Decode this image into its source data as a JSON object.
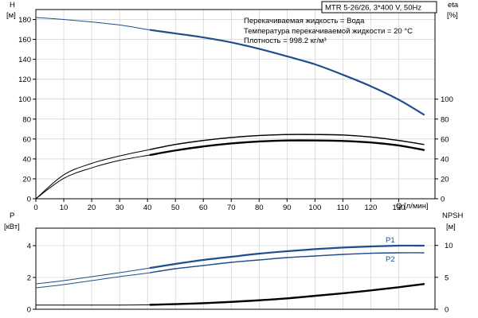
{
  "header": {
    "model": "MTR 5-26/26, 3*400 V, 50Hz"
  },
  "info_lines": [
    "Перекачиваемая жидкость = Вода",
    "Температура перекачиваемой жидкости = 20 °C",
    "Плотность = 998.2 кг/м³"
  ],
  "colors": {
    "head_curve": "#1f4e8c",
    "efficiency_curve": "#000000",
    "p1_curve": "#1f4e8c",
    "p2_curve": "#1f4e8c",
    "npsh_curve": "#000000",
    "axis": "#000000",
    "grid": "#c8c8c8"
  },
  "chart_data": [
    {
      "type": "line",
      "xlabel": "Q [л/мин]",
      "xticks": [
        "0",
        "10",
        "20",
        "30",
        "40",
        "50",
        "60",
        "70",
        "80",
        "90",
        "100",
        "110",
        "120",
        "130"
      ],
      "xlim": [
        0,
        143
      ],
      "ylabel_left": "H",
      "ylabel_left_unit": "[м]",
      "ylim_left": [
        0,
        190
      ],
      "yticks_left": [
        "0",
        "20",
        "40",
        "60",
        "80",
        "100",
        "120",
        "140",
        "160",
        "180"
      ],
      "ylabel_right": "eta",
      "ylabel_right_unit": "[%]",
      "ylim_right": [
        0,
        190
      ],
      "yticks_right": [
        "0",
        "20",
        "40",
        "60",
        "80",
        "100"
      ],
      "grid": true,
      "series": [
        {
          "axis": "left",
          "x": [
            0,
            10,
            20,
            30,
            41,
            50,
            60,
            70,
            80,
            90,
            100,
            110,
            120,
            130,
            139
          ],
          "y": [
            182,
            180,
            177.5,
            174.5,
            169.5,
            166,
            162,
            157,
            150.5,
            143,
            135,
            124.5,
            113,
            99.5,
            84.5
          ]
        },
        {
          "axis": "right",
          "x": [
            0,
            10,
            20,
            30,
            41,
            50,
            60,
            70,
            80,
            90,
            100,
            110,
            120,
            130,
            139
          ],
          "y": [
            0,
            24,
            35.5,
            43,
            49.5,
            54.5,
            58.5,
            61.5,
            63.5,
            64.5,
            64.5,
            64,
            62,
            58.5,
            54.5
          ]
        },
        {
          "axis": "right",
          "x": [
            0,
            10,
            20,
            30,
            41,
            50,
            60,
            70,
            80,
            90,
            100,
            110,
            120,
            130,
            139
          ],
          "y": [
            0,
            20.5,
            31,
            38.5,
            44,
            48.5,
            52.5,
            55.5,
            57.5,
            58.5,
            58.5,
            58,
            56.5,
            53.5,
            49
          ]
        }
      ]
    },
    {
      "type": "line",
      "xlim": [
        0,
        143
      ],
      "ylabel_left": "P",
      "ylabel_left_unit": "[кВт]",
      "ylim_left": [
        0,
        5.1
      ],
      "yticks_left": [
        "0",
        "2",
        "4"
      ],
      "ylabel_right": "NPSH",
      "ylabel_right_unit": "[м]",
      "ylim_right": [
        0,
        12.7
      ],
      "yticks_right": [
        "0",
        "5",
        "10"
      ],
      "grid": true,
      "series": [
        {
          "name": "P1",
          "axis": "left",
          "x": [
            0,
            10,
            20,
            30,
            41,
            50,
            60,
            70,
            80,
            90,
            100,
            110,
            120,
            130,
            139
          ],
          "y": [
            1.6,
            1.8,
            2.05,
            2.3,
            2.6,
            2.85,
            3.1,
            3.3,
            3.5,
            3.65,
            3.78,
            3.88,
            3.95,
            4.0,
            4.0
          ]
        },
        {
          "name": "P2",
          "axis": "left",
          "x": [
            0,
            10,
            20,
            30,
            41,
            50,
            60,
            70,
            80,
            90,
            100,
            110,
            120,
            130,
            139
          ],
          "y": [
            1.35,
            1.55,
            1.8,
            2.05,
            2.3,
            2.55,
            2.75,
            2.95,
            3.1,
            3.25,
            3.35,
            3.45,
            3.52,
            3.55,
            3.55
          ]
        },
        {
          "axis": "right",
          "x": [
            0,
            10,
            20,
            30,
            41,
            50,
            60,
            70,
            80,
            90,
            100,
            110,
            120,
            130,
            139
          ],
          "y": [
            0.65,
            0.65,
            0.65,
            0.66,
            0.7,
            0.8,
            0.95,
            1.15,
            1.4,
            1.7,
            2.1,
            2.5,
            2.95,
            3.45,
            3.95
          ]
        }
      ]
    }
  ]
}
